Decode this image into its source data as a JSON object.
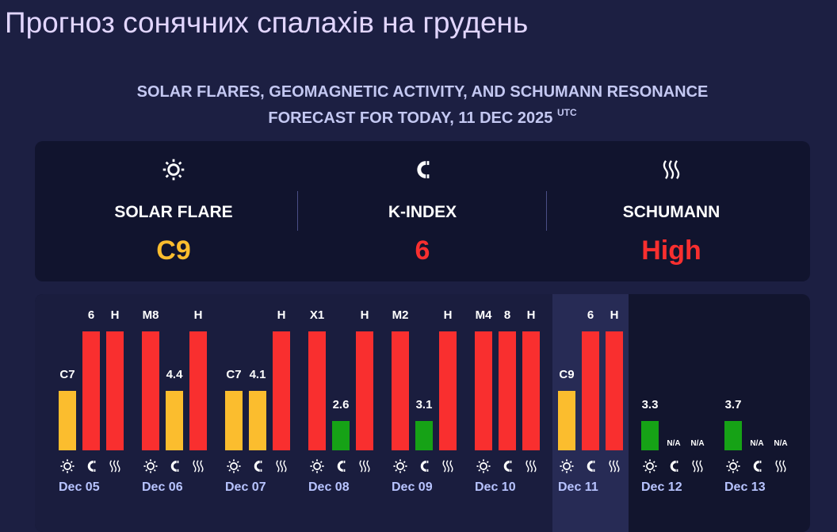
{
  "header": {
    "title": "Прогноз сонячних спалахів на грудень"
  },
  "subtitle": {
    "line1": "SOLAR FLARES, GEOMAGNETIC ACTIVITY, AND SCHUMANN RESONANCE",
    "line2": "FORECAST FOR TODAY, 11 DEC 2025",
    "sup": "UTC"
  },
  "today": [
    {
      "label": "SOLAR FLARE",
      "value": "C9",
      "color": "#fbbd2e"
    },
    {
      "label": "K-INDEX",
      "value": "6",
      "color": "#f92f2f"
    },
    {
      "label": "SCHUMANN",
      "value": "High",
      "color": "#f92f2f"
    }
  ],
  "days": [
    {
      "date": "Dec 05",
      "bars": [
        {
          "label": "C7",
          "color": "#fbbd2e"
        },
        {
          "label": "6",
          "color": "#f92f2f"
        },
        {
          "label": "H",
          "color": "#f92f2f"
        }
      ]
    },
    {
      "date": "Dec 06",
      "bars": [
        {
          "label": "M8",
          "color": "#f92f2f"
        },
        {
          "label": "4.4",
          "color": "#fbbd2e"
        },
        {
          "label": "H",
          "color": "#f92f2f"
        }
      ]
    },
    {
      "date": "Dec 07",
      "bars": [
        {
          "label": "C7",
          "color": "#fbbd2e"
        },
        {
          "label": "4.1",
          "color": "#fbbd2e"
        },
        {
          "label": "H",
          "color": "#f92f2f"
        }
      ]
    },
    {
      "date": "Dec 08",
      "bars": [
        {
          "label": "X1",
          "color": "#f92f2f"
        },
        {
          "label": "2.6",
          "color": "#16a216"
        },
        {
          "label": "H",
          "color": "#f92f2f"
        }
      ]
    },
    {
      "date": "Dec 09",
      "bars": [
        {
          "label": "M2",
          "color": "#f92f2f"
        },
        {
          "label": "3.1",
          "color": "#16a216"
        },
        {
          "label": "H",
          "color": "#f92f2f"
        }
      ]
    },
    {
      "date": "Dec 10",
      "bars": [
        {
          "label": "M4",
          "color": "#f92f2f"
        },
        {
          "label": "8",
          "color": "#f92f2f"
        },
        {
          "label": "H",
          "color": "#f92f2f"
        }
      ]
    },
    {
      "date": "Dec 11",
      "bars": [
        {
          "label": "C9",
          "color": "#fbbd2e"
        },
        {
          "label": "6",
          "color": "#f92f2f"
        },
        {
          "label": "H",
          "color": "#f92f2f"
        }
      ]
    },
    {
      "date": "Dec 12",
      "bars": [
        {
          "label": "3.3",
          "color": "#16a216"
        },
        {
          "label": "N/A"
        },
        {
          "label": "N/A"
        }
      ]
    },
    {
      "date": "Dec 13",
      "bars": [
        {
          "label": "3.7",
          "color": "#16a216"
        },
        {
          "label": "N/A"
        },
        {
          "label": "N/A"
        }
      ]
    }
  ]
}
